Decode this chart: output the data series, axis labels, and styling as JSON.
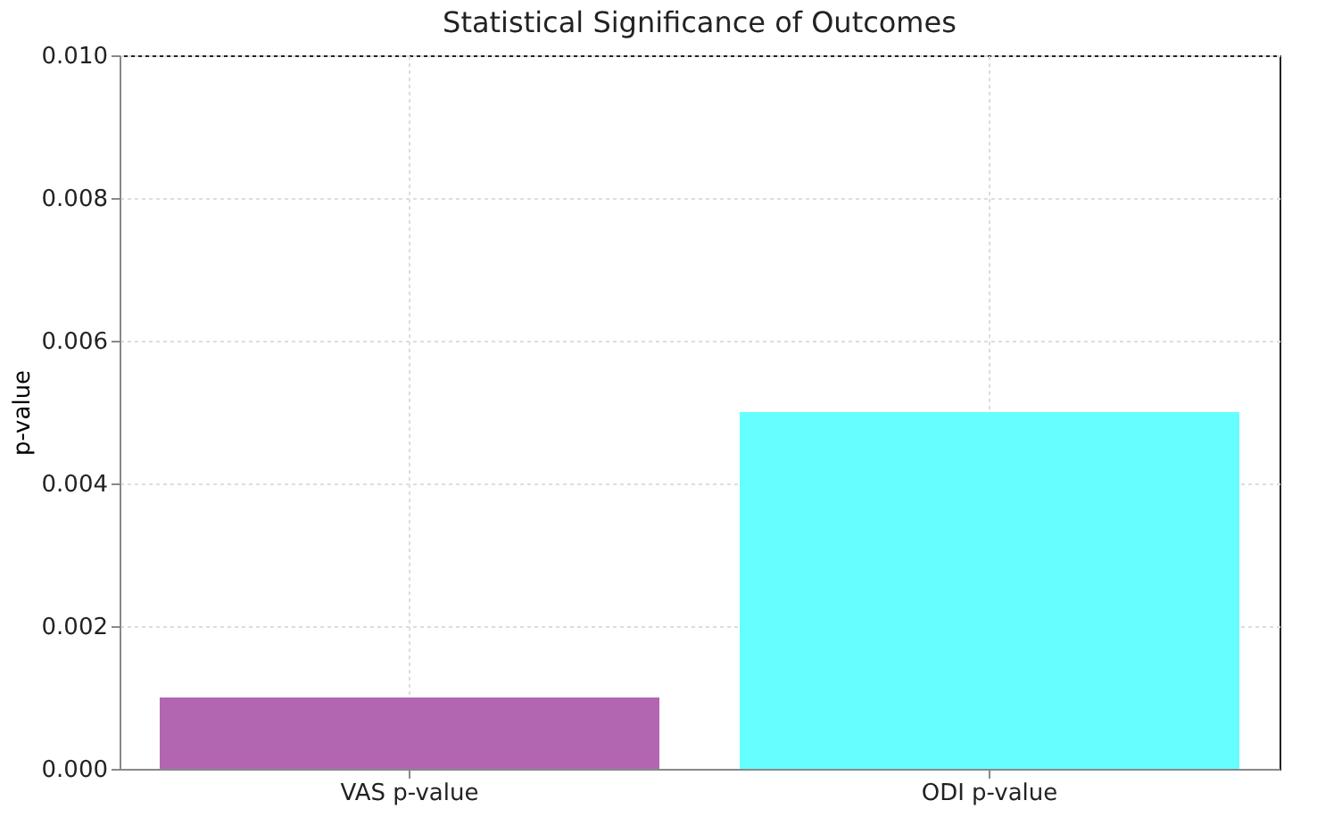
{
  "chart_data": {
    "type": "bar",
    "title": "Statistical Significance of Outcomes",
    "ylabel": "p-value",
    "categories": [
      "VAS p-value",
      "ODI p-value"
    ],
    "values": [
      0.001,
      0.005
    ],
    "colors": [
      "#b266b2",
      "#66ffff"
    ],
    "ylim": [
      0,
      0.01
    ],
    "yticks": [
      {
        "value": 0,
        "label": "0.000"
      },
      {
        "value": 0.002,
        "label": "0.002"
      },
      {
        "value": 0.004,
        "label": "0.004"
      },
      {
        "value": 0.006,
        "label": "0.006"
      },
      {
        "value": 0.008,
        "label": "0.008"
      },
      {
        "value": 0.01,
        "label": "0.010"
      }
    ],
    "grid": true
  }
}
